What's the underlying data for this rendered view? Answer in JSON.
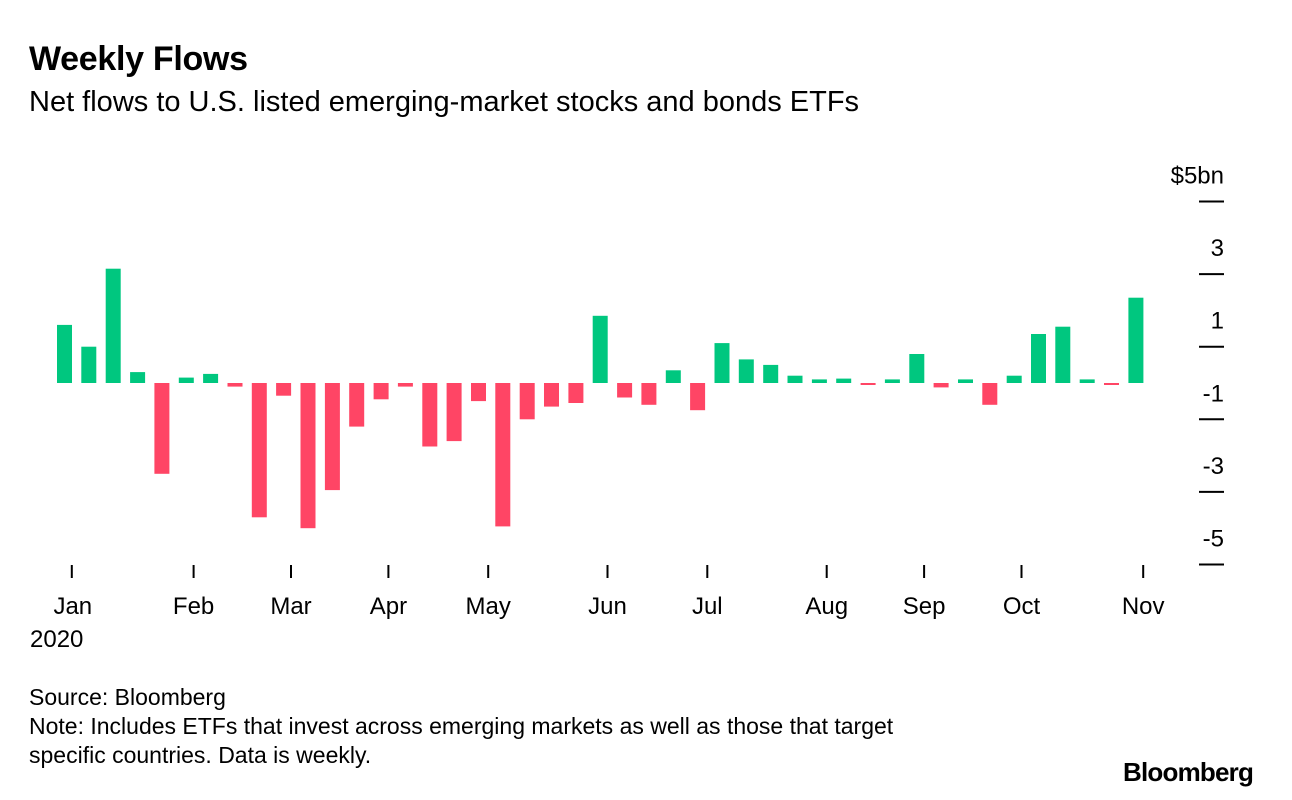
{
  "title": "Weekly Flows",
  "subtitle": "Net flows to U.S. listed emerging-market stocks and bonds ETFs",
  "source": "Source: Bloomberg",
  "note_line1": "Note: Includes ETFs that invest across emerging markets as well as those that target",
  "note_line2": "specific countries. Data is weekly.",
  "logo_text": "Bloomberg",
  "colors": {
    "positive": "#00C77F",
    "negative": "#FF4565",
    "axis": "#000000"
  },
  "chart_data": {
    "type": "bar",
    "title": "Weekly Flows",
    "subtitle": "Net flows to U.S. listed emerging-market stocks and bonds ETFs",
    "ylabel": "$bn",
    "ylim": [
      -5,
      5
    ],
    "y_ticks": [
      {
        "value": 5,
        "label": "$5bn"
      },
      {
        "value": 3,
        "label": "3"
      },
      {
        "value": 1,
        "label": "1"
      },
      {
        "value": -1,
        "label": "-1"
      },
      {
        "value": -3,
        "label": "-3"
      },
      {
        "value": -5,
        "label": "-5"
      }
    ],
    "x_ticks": [
      {
        "label": "Jan",
        "sublabel": "2020",
        "pos": 0.3
      },
      {
        "label": "Feb",
        "pos": 5.3
      },
      {
        "label": "Mar",
        "pos": 9.3
      },
      {
        "label": "Apr",
        "pos": 13.3
      },
      {
        "label": "May",
        "pos": 17.4
      },
      {
        "label": "Jun",
        "pos": 22.3
      },
      {
        "label": "Jul",
        "pos": 26.4
      },
      {
        "label": "Aug",
        "pos": 31.3
      },
      {
        "label": "Sep",
        "pos": 35.3
      },
      {
        "label": "Oct",
        "pos": 39.3
      },
      {
        "label": "Nov",
        "pos": 44.3
      }
    ],
    "values": [
      1.6,
      1.0,
      3.15,
      0.3,
      -2.5,
      0.15,
      0.25,
      -0.1,
      -3.7,
      -0.35,
      -4.0,
      -2.95,
      -1.2,
      -0.45,
      -0.1,
      -1.75,
      -1.6,
      -0.5,
      -3.95,
      -1.0,
      -0.65,
      -0.55,
      1.85,
      -0.4,
      -0.6,
      0.35,
      -0.75,
      1.1,
      0.65,
      0.5,
      0.2,
      0.1,
      0.12,
      -0.05,
      0.1,
      0.8,
      -0.12,
      0.1,
      -0.6,
      0.2,
      1.35,
      1.55,
      0.1,
      -0.05,
      2.35
    ]
  }
}
